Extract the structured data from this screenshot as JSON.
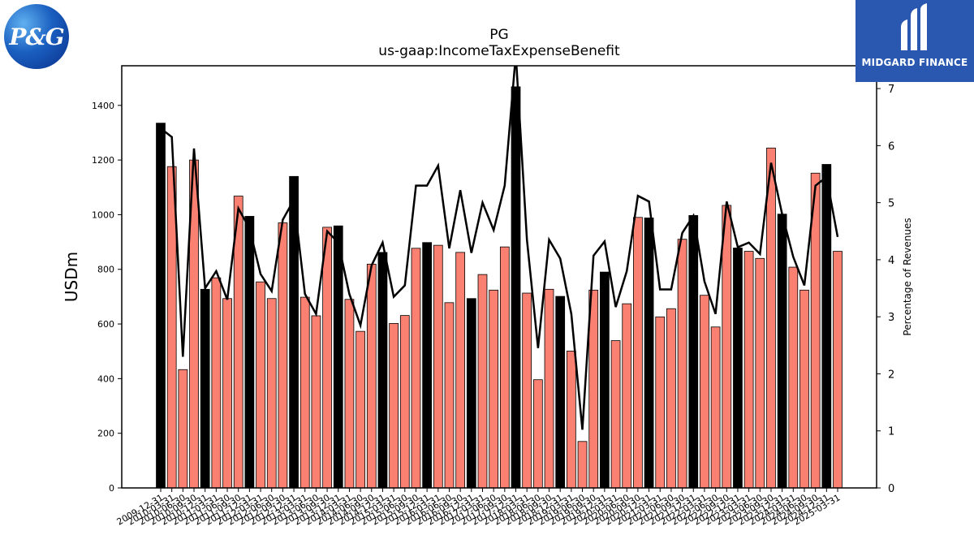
{
  "logos": {
    "left_text": "P&G",
    "right_text": "MIDGARD FINANCE"
  },
  "chart_data": {
    "type": "bar",
    "title": "PG",
    "subtitle": "us-gaap:IncomeTaxExpenseBenefit",
    "ylabel": "USDm",
    "y2label": "Percentage of Revenues",
    "ylim": [
      0,
      1545
    ],
    "y2lim": [
      0,
      7.4
    ],
    "yticks": [
      0,
      200,
      400,
      600,
      800,
      1000,
      1200,
      1400
    ],
    "y2ticks": [
      0,
      1,
      2,
      3,
      4,
      5,
      6,
      7
    ],
    "colors": {
      "annual_bar": "#000000",
      "quarter_bar": "#fa8072",
      "line": "#000000"
    },
    "categories": [
      "2009-12-31",
      "2010-03-31",
      "2010-06-30",
      "2010-09-30",
      "2010-12-31",
      "2011-03-31",
      "2011-06-30",
      "2011-09-30",
      "2011-12-31",
      "2012-03-31",
      "2012-06-30",
      "2012-09-30",
      "2012-12-31",
      "2013-03-31",
      "2013-06-30",
      "2013-09-30",
      "2013-12-31",
      "2014-03-31",
      "2014-06-30",
      "2014-09-30",
      "2014-12-31",
      "2015-03-31",
      "2015-06-30",
      "2015-09-30",
      "2015-12-31",
      "2016-03-31",
      "2016-06-30",
      "2016-09-30",
      "2016-12-31",
      "2017-03-31",
      "2017-06-30",
      "2017-09-30",
      "2017-12-31",
      "2018-03-31",
      "2018-06-30",
      "2018-09-30",
      "2018-12-31",
      "2019-03-31",
      "2019-06-30",
      "2019-09-30",
      "2019-12-31",
      "2020-03-31",
      "2020-06-30",
      "2020-09-30",
      "2020-12-31",
      "2021-03-31",
      "2021-06-30",
      "2021-09-30",
      "2021-12-31",
      "2022-03-31",
      "2022-06-30",
      "2022-09-30",
      "2022-12-31",
      "2023-03-31",
      "2023-06-30",
      "2023-09-30",
      "2023-12-31",
      "2024-03-31",
      "2024-06-30",
      "2024-09-30",
      "2024-12-31",
      "2025-03-31"
    ],
    "series": [
      {
        "values": [
          1335,
          1176,
          433,
          1200,
          727,
          769,
          693,
          1068,
          994,
          754,
          693,
          970,
          1140,
          698,
          630,
          954,
          959,
          690,
          573,
          819,
          862,
          602,
          631,
          877,
          898,
          888,
          678,
          862,
          693,
          781,
          724,
          882,
          1468,
          713,
          396,
          727,
          701,
          501,
          170,
          724,
          790,
          539,
          674,
          990,
          988,
          626,
          656,
          910,
          997,
          705,
          589,
          1034,
          878,
          866,
          840,
          1244,
          1002,
          808,
          724,
          1152,
          1184,
          866
        ],
        "annual_flags": [
          1,
          0,
          0,
          0,
          1,
          0,
          0,
          0,
          1,
          0,
          0,
          0,
          1,
          0,
          0,
          0,
          1,
          0,
          0,
          0,
          1,
          0,
          0,
          0,
          1,
          0,
          0,
          0,
          1,
          0,
          0,
          0,
          1,
          0,
          0,
          0,
          1,
          0,
          0,
          0,
          1,
          0,
          0,
          0,
          1,
          0,
          0,
          0,
          1,
          0,
          0,
          0,
          1,
          0,
          0,
          0,
          1,
          0,
          0,
          0,
          1,
          0
        ]
      },
      {
        "values": [
          6.3,
          6.15,
          2.3,
          5.95,
          3.5,
          3.8,
          3.3,
          4.9,
          4.55,
          3.75,
          3.45,
          4.7,
          5.05,
          3.4,
          3.05,
          4.5,
          4.3,
          3.4,
          2.85,
          3.9,
          4.3,
          3.35,
          3.55,
          5.3,
          5.3,
          5.65,
          4.2,
          5.22,
          4.12,
          5.0,
          4.52,
          5.3,
          7.6,
          4.35,
          2.45,
          4.35,
          4.02,
          3.05,
          1.02,
          4.07,
          4.32,
          3.17,
          3.8,
          5.12,
          5.02,
          3.48,
          3.48,
          4.47,
          4.77,
          3.62,
          3.05,
          5.02,
          4.22,
          4.3,
          4.1,
          5.7,
          4.8,
          4.05,
          3.55,
          5.3,
          5.45,
          4.4
        ]
      }
    ]
  }
}
